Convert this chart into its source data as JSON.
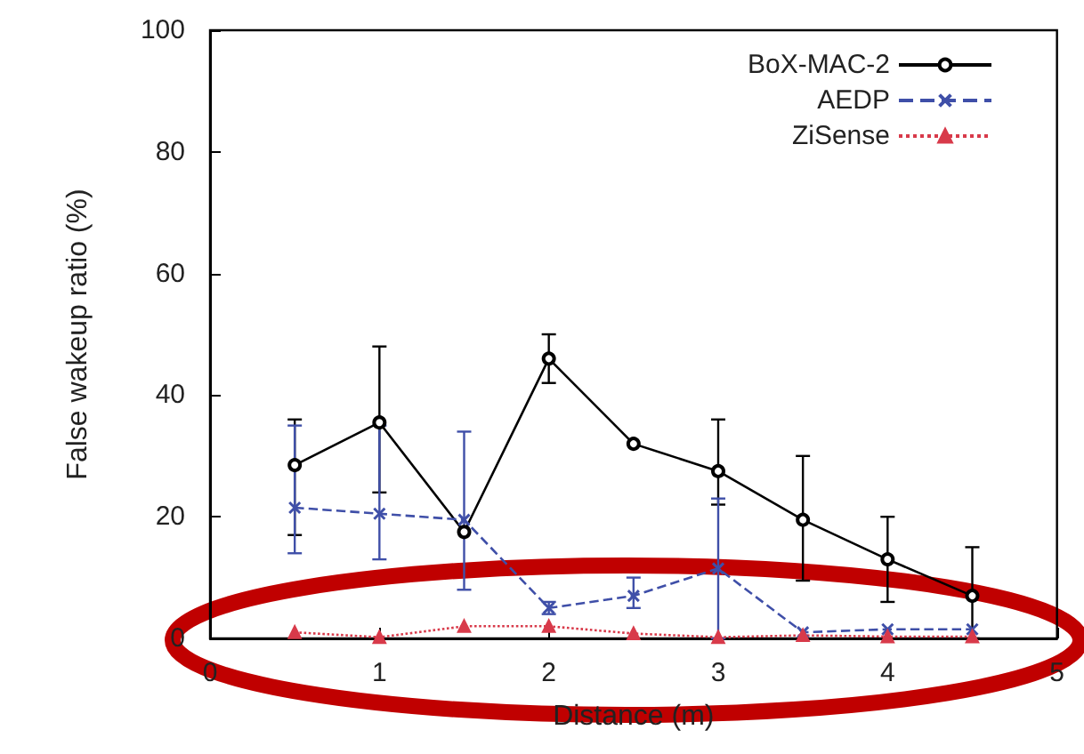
{
  "chart_data": {
    "type": "line",
    "xlabel": "Distance (m)",
    "ylabel": "False wakeup ratio (%)",
    "x": [
      0.5,
      1,
      1.5,
      2,
      2.5,
      3,
      3.5,
      4,
      4.5
    ],
    "series": [
      {
        "name": "BoX-MAC-2",
        "color": "#000000",
        "marker": "circle",
        "line_style": "solid",
        "values": [
          28.5,
          35.5,
          17.5,
          46,
          32,
          27.5,
          19.5,
          13,
          7
        ],
        "errors": [
          [
            17,
            36
          ],
          [
            24,
            48
          ],
          null,
          [
            42,
            50
          ],
          null,
          [
            22,
            36
          ],
          [
            9.5,
            30
          ],
          [
            6,
            20
          ],
          [
            0,
            15
          ]
        ]
      },
      {
        "name": "AEDP",
        "color": "#3f4fa8",
        "marker": "cross",
        "line_style": "dashed",
        "values": [
          21.5,
          20.5,
          19.5,
          5,
          7,
          11.5,
          1,
          1.5,
          1.5
        ],
        "errors": [
          [
            14,
            35
          ],
          [
            13,
            35
          ],
          [
            8,
            34
          ],
          [
            4,
            6
          ],
          [
            5,
            10
          ],
          [
            0,
            23
          ],
          null,
          null,
          null
        ]
      },
      {
        "name": "ZiSense",
        "color": "#d83a4a",
        "marker": "triangle",
        "line_style": "dotted",
        "values": [
          1,
          0.2,
          2,
          2,
          0.8,
          0.2,
          0.5,
          0.3,
          0.3
        ]
      }
    ],
    "xlim": [
      0,
      5
    ],
    "xticks": [
      0,
      1,
      2,
      3,
      4,
      5
    ],
    "ylim": [
      0,
      100
    ],
    "yticks": [
      0,
      20,
      40,
      60,
      80,
      100
    ],
    "grid": false,
    "legend": "top right"
  }
}
